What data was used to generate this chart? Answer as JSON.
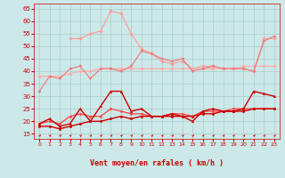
{
  "x": [
    0,
    1,
    2,
    3,
    4,
    5,
    6,
    7,
    8,
    9,
    10,
    11,
    12,
    13,
    14,
    15,
    16,
    17,
    18,
    19,
    20,
    21,
    22,
    23
  ],
  "series": [
    {
      "color": "#ff9999",
      "lw": 0.8,
      "marker": "D",
      "markersize": 1.8,
      "y": [
        null,
        null,
        null,
        53,
        53,
        55,
        56,
        64,
        63,
        55,
        49,
        47,
        44,
        43,
        44,
        41,
        42,
        42,
        41,
        41,
        41,
        40,
        53,
        53
      ]
    },
    {
      "color": "#ffaaaa",
      "lw": 0.8,
      "marker": "D",
      "markersize": 1.8,
      "y": [
        38,
        38,
        38,
        39,
        40,
        40,
        41,
        41,
        41,
        41,
        41,
        41,
        41,
        41,
        41,
        41,
        41,
        41,
        41,
        41,
        42,
        42,
        42,
        42
      ]
    },
    {
      "color": "#ee7777",
      "lw": 0.8,
      "marker": "v",
      "markersize": 2.0,
      "y": [
        32,
        38,
        37,
        41,
        42,
        37,
        41,
        41,
        40,
        42,
        48,
        47,
        45,
        44,
        45,
        40,
        41,
        42,
        41,
        41,
        41,
        40,
        52,
        54
      ]
    },
    {
      "color": "#ff4444",
      "lw": 0.9,
      "marker": "o",
      "markersize": 1.8,
      "y": [
        19,
        20,
        19,
        22,
        23,
        22,
        22,
        25,
        24,
        23,
        23,
        22,
        22,
        23,
        23,
        22,
        24,
        24,
        24,
        25,
        25,
        25,
        25,
        25
      ]
    },
    {
      "color": "#cc0000",
      "lw": 1.0,
      "marker": "o",
      "markersize": 1.8,
      "y": [
        18,
        18,
        17,
        18,
        19,
        20,
        20,
        21,
        22,
        21,
        22,
        22,
        22,
        22,
        22,
        22,
        23,
        23,
        24,
        24,
        24,
        25,
        25,
        25
      ]
    },
    {
      "color": "#cc0000",
      "lw": 1.0,
      "marker": "^",
      "markersize": 1.8,
      "y": [
        19,
        21,
        18,
        19,
        25,
        20,
        26,
        32,
        32,
        24,
        25,
        22,
        22,
        23,
        22,
        20,
        24,
        25,
        24,
        24,
        25,
        32,
        31,
        30
      ]
    }
  ],
  "ylim": [
    13,
    67
  ],
  "yticks": [
    15,
    20,
    25,
    30,
    35,
    40,
    45,
    50,
    55,
    60,
    65
  ],
  "xlim": [
    -0.5,
    23.5
  ],
  "xticks": [
    0,
    1,
    2,
    3,
    4,
    5,
    6,
    7,
    8,
    9,
    10,
    11,
    12,
    13,
    14,
    15,
    16,
    17,
    18,
    19,
    20,
    21,
    22,
    23
  ],
  "xlabel": "Vent moyen/en rafales ( km/h )",
  "bg_color": "#cce8e8",
  "grid_color": "#aacccc",
  "tick_color": "#cc0000",
  "xlabel_color": "#cc0000",
  "tick_fontsize": 5.0,
  "xlabel_fontsize": 6.0
}
